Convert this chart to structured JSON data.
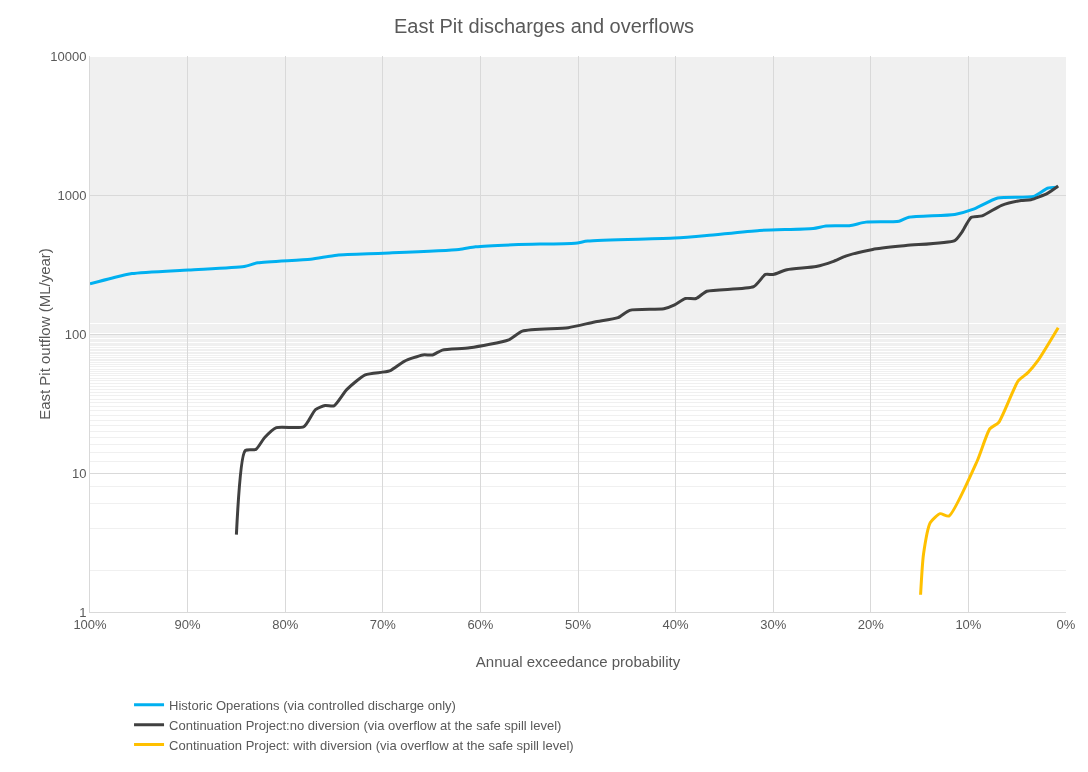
{
  "chart_data": {
    "type": "line",
    "title": "East Pit discharges and overflows",
    "xlabel": "Annual exceedance probability",
    "ylabel": "East Pit outflow (ML/year)",
    "xlim": [
      100,
      0
    ],
    "xticks": [
      {
        "value": 100,
        "label": "100%"
      },
      {
        "value": 90,
        "label": "90%"
      },
      {
        "value": 80,
        "label": "80%"
      },
      {
        "value": 70,
        "label": "70%"
      },
      {
        "value": 60,
        "label": "60%"
      },
      {
        "value": 50,
        "label": "50%"
      },
      {
        "value": 40,
        "label": "40%"
      },
      {
        "value": 30,
        "label": "30%"
      },
      {
        "value": 20,
        "label": "20%"
      },
      {
        "value": 10,
        "label": "10%"
      },
      {
        "value": 0,
        "label": "0%"
      }
    ],
    "ylim": [
      1,
      10000
    ],
    "yticks": [
      1,
      10,
      100,
      1000,
      10000
    ],
    "log": "y",
    "grid": true,
    "legend": "bottom",
    "marker": "none",
    "line_style": "solid",
    "series": [
      {
        "name": "Historic Operations (via controlled discharge only)",
        "color": "#00b0f0",
        "x": [
          100,
          97.8,
          95.7,
          89.9,
          84.2,
          82.8,
          77.4,
          74.7,
          69.9,
          62.2,
          60.5,
          56.1,
          50.3,
          49,
          40.1,
          36.8,
          31.4,
          25.9,
          24.6,
          22.2,
          20.5,
          17.1,
          16.1,
          11.4,
          9.4,
          7,
          3.3,
          1.9,
          0.9
        ],
        "values": [
          230,
          252,
          272,
          289,
          306,
          325,
          345,
          369,
          381,
          406,
          424,
          440,
          450,
          466,
          490,
          511,
          556,
          574,
          598,
          602,
          638,
          648,
          692,
          725,
          794,
          952,
          978,
          1118,
          1136
        ]
      },
      {
        "name": "Continuation Project:no diversion (via overflow at the safe spill level)",
        "color": "#404040",
        "x": [
          85,
          84.1,
          83,
          82.1,
          80.9,
          78.1,
          76.9,
          75.9,
          75,
          73.7,
          71.8,
          69.3,
          67.8,
          65.9,
          64.9,
          63.9,
          61.1,
          57.1,
          55.7,
          51,
          48.3,
          45.9,
          44.7,
          41.2,
          40.1,
          39,
          37.9,
          36.8,
          32,
          30.8,
          30,
          28.6,
          25.6,
          23.9,
          22.5,
          19.8,
          16.4,
          11.4,
          10.7,
          9.7,
          8.6,
          6.6,
          4.6,
          3.6,
          1.9,
          0.8
        ],
        "values": [
          3.6,
          14.5,
          14.8,
          18,
          21.2,
          21.5,
          28.6,
          30.6,
          30.4,
          39.8,
          50.8,
          54.2,
          63.6,
          70.7,
          70.7,
          76.6,
          79.5,
          90.8,
          105,
          111,
          122,
          131,
          148,
          152,
          162,
          180,
          180,
          203,
          219,
          268,
          268,
          290,
          306,
          332,
          365,
          406,
          433,
          470,
          536,
          692,
          707,
          843,
          913,
          925,
          1028,
          1161
        ]
      },
      {
        "name": "Continuation Project: with diversion (via overflow at the safe spill level)",
        "color": "#ffc000",
        "x": [
          14.9,
          14.6,
          13.9,
          12.9,
          12,
          9.1,
          7.8,
          6.9,
          4.9,
          3.9,
          2.9,
          0.8
        ],
        "values": [
          1.33,
          2.6,
          4.4,
          5.1,
          4.9,
          12.2,
          20.8,
          23.1,
          46,
          52.7,
          64,
          111
        ]
      }
    ]
  }
}
